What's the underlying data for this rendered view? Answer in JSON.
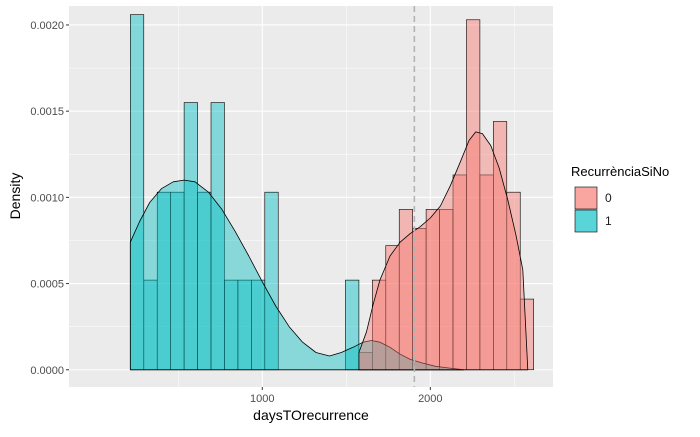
{
  "chart_data": {
    "type": "histogram+density",
    "xlabel": "daysTOrecurrence",
    "ylabel": "Density",
    "x_ticks": [
      1000,
      2000
    ],
    "y_ticks": [
      "0.0000",
      "0.0005",
      "0.0010",
      "0.0015",
      "0.0020"
    ],
    "xlim": [
      -150,
      2730
    ],
    "ylim": [
      -0.0001,
      0.00211
    ],
    "grid": true,
    "legend_placement": "right",
    "bin_width": 80,
    "vline": 1905,
    "legend": {
      "title": "RecurrènciaSiNo",
      "entries": [
        {
          "label": "0",
          "key": "0"
        },
        {
          "label": "1",
          "key": "1"
        }
      ]
    },
    "colors": {
      "group_0_fill": "#F8766D",
      "group_1_fill": "#00BFC4",
      "panel_bg": "#EBEBEB",
      "gridline": "#FFFFFF",
      "vline": "#B3B3B3"
    },
    "series": [
      {
        "name": "1",
        "bins": [
          {
            "x0": 215,
            "x1": 295,
            "y": 0.00206
          },
          {
            "x0": 295,
            "x1": 375,
            "y": 0.00052
          },
          {
            "x0": 375,
            "x1": 455,
            "y": 0.00103
          },
          {
            "x0": 455,
            "x1": 535,
            "y": 0.00103
          },
          {
            "x0": 535,
            "x1": 615,
            "y": 0.00155
          },
          {
            "x0": 615,
            "x1": 695,
            "y": 0.00103
          },
          {
            "x0": 695,
            "x1": 775,
            "y": 0.00155
          },
          {
            "x0": 775,
            "x1": 855,
            "y": 0.00052
          },
          {
            "x0": 855,
            "x1": 935,
            "y": 0.00052
          },
          {
            "x0": 935,
            "x1": 1015,
            "y": 0.00052
          },
          {
            "x0": 1015,
            "x1": 1095,
            "y": 0.00103
          },
          {
            "x0": 1495,
            "x1": 1575,
            "y": 0.00052
          }
        ],
        "density": [
          [
            215,
            0.00074
          ],
          [
            270,
            0.00086
          ],
          [
            330,
            0.00097
          ],
          [
            400,
            0.00105
          ],
          [
            470,
            0.00109
          ],
          [
            535,
            0.0011
          ],
          [
            600,
            0.00109
          ],
          [
            680,
            0.00103
          ],
          [
            760,
            0.00093
          ],
          [
            840,
            0.0008
          ],
          [
            920,
            0.00066
          ],
          [
            1000,
            0.00051
          ],
          [
            1080,
            0.00037
          ],
          [
            1160,
            0.00025
          ],
          [
            1240,
            0.00016
          ],
          [
            1320,
            0.0001
          ],
          [
            1400,
            8e-05
          ],
          [
            1470,
            0.0001
          ],
          [
            1540,
            0.00013
          ],
          [
            1600,
            0.00016
          ],
          [
            1650,
            0.00017
          ],
          [
            1700,
            0.00016
          ],
          [
            1760,
            0.00013
          ],
          [
            1820,
            9e-05
          ],
          [
            1880,
            6e-05
          ],
          [
            1950,
            4e-05
          ],
          [
            2030,
            2e-05
          ],
          [
            2110,
            1e-05
          ],
          [
            2200,
            0.0
          ]
        ]
      },
      {
        "name": "0",
        "bins": [
          {
            "x0": 1575,
            "x1": 1655,
            "y": 0.0001
          },
          {
            "x0": 1655,
            "x1": 1735,
            "y": 0.00052
          },
          {
            "x0": 1735,
            "x1": 1815,
            "y": 0.00072
          },
          {
            "x0": 1815,
            "x1": 1895,
            "y": 0.00093
          },
          {
            "x0": 1895,
            "x1": 1975,
            "y": 0.00082
          },
          {
            "x0": 1975,
            "x1": 2055,
            "y": 0.00093
          },
          {
            "x0": 2055,
            "x1": 2135,
            "y": 0.00093
          },
          {
            "x0": 2135,
            "x1": 2215,
            "y": 0.00113
          },
          {
            "x0": 2215,
            "x1": 2295,
            "y": 0.00203
          },
          {
            "x0": 2295,
            "x1": 2375,
            "y": 0.00113
          },
          {
            "x0": 2375,
            "x1": 2455,
            "y": 0.00144
          },
          {
            "x0": 2455,
            "x1": 2535,
            "y": 0.00103
          },
          {
            "x0": 2535,
            "x1": 2615,
            "y": 0.00041
          }
        ],
        "density": [
          [
            1575,
            0.0001
          ],
          [
            1620,
            0.00022
          ],
          [
            1660,
            0.00038
          ],
          [
            1700,
            0.00052
          ],
          [
            1760,
            0.00066
          ],
          [
            1820,
            0.00074
          ],
          [
            1880,
            0.00079
          ],
          [
            1940,
            0.00083
          ],
          [
            2000,
            0.00088
          ],
          [
            2060,
            0.00095
          ],
          [
            2120,
            0.00107
          ],
          [
            2180,
            0.00121
          ],
          [
            2230,
            0.00133
          ],
          [
            2270,
            0.00138
          ],
          [
            2310,
            0.00137
          ],
          [
            2360,
            0.0013
          ],
          [
            2410,
            0.00117
          ],
          [
            2460,
            0.00099
          ],
          [
            2510,
            0.00078
          ],
          [
            2550,
            0.00058
          ],
          [
            2580,
            0.0
          ]
        ]
      }
    ]
  }
}
